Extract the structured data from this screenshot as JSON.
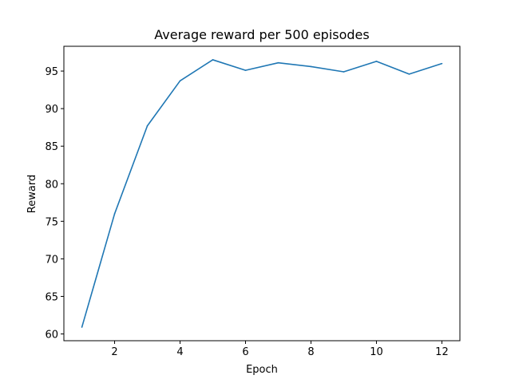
{
  "chart_data": {
    "type": "line",
    "title": "Average reward per 500 episodes",
    "xlabel": "Epoch",
    "ylabel": "Reward",
    "x": [
      1,
      2,
      3,
      4,
      5,
      6,
      7,
      8,
      9,
      10,
      11,
      12
    ],
    "series": [
      {
        "values": [
          60.9,
          76.0,
          87.7,
          93.7,
          96.5,
          95.1,
          96.1,
          95.6,
          94.9,
          96.3,
          94.6,
          96.0
        ],
        "color": "#1f77b4"
      }
    ],
    "xlim": [
      0.45,
      12.55
    ],
    "ylim": [
      59.1,
      98.3
    ],
    "xticks": [
      2,
      4,
      6,
      8,
      10,
      12
    ],
    "yticks": [
      60,
      65,
      70,
      75,
      80,
      85,
      90,
      95
    ],
    "grid": false,
    "legend": "none"
  }
}
